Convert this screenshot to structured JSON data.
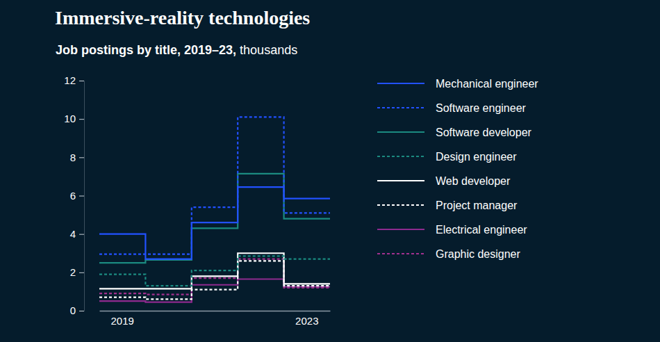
{
  "chart_data": {
    "type": "line",
    "title": "Immersive-reality technologies",
    "subtitle": "Job postings by title, 2019–23,",
    "y_label": "thousands",
    "categories": [
      "2019",
      null,
      null,
      null,
      "2023"
    ],
    "ylim": [
      0,
      12
    ],
    "yticks": [
      0,
      2,
      4,
      6,
      8,
      10,
      12
    ],
    "legend": "right",
    "series": [
      {
        "name": "Mechanical engineer",
        "color": "#2251ff",
        "line_style": "solid",
        "values": [
          4.0,
          2.7,
          4.6,
          6.45,
          5.85
        ]
      },
      {
        "name": "Software engineer",
        "color": "#2251ff",
        "line_style": "dotted",
        "values": [
          2.95,
          2.95,
          5.4,
          10.1,
          5.1
        ]
      },
      {
        "name": "Software developer",
        "color": "#1b8a80",
        "line_style": "solid",
        "values": [
          2.5,
          2.65,
          4.3,
          7.15,
          4.8
        ]
      },
      {
        "name": "Design engineer",
        "color": "#1b8a80",
        "line_style": "dotted",
        "values": [
          1.9,
          1.3,
          2.1,
          2.85,
          2.7
        ]
      },
      {
        "name": "Web developer",
        "color": "#ffffff",
        "line_style": "solid",
        "values": [
          1.15,
          1.15,
          1.8,
          3.0,
          1.4
        ]
      },
      {
        "name": "Project manager",
        "color": "#ffffff",
        "line_style": "dotted",
        "values": [
          0.7,
          0.6,
          1.1,
          2.6,
          1.3
        ]
      },
      {
        "name": "Electrical engineer",
        "color": "#8e2a8e",
        "line_style": "solid",
        "values": [
          0.5,
          0.45,
          1.35,
          1.65,
          1.25
        ]
      },
      {
        "name": "Graphic designer",
        "color": "#a2308f",
        "line_style": "dotted",
        "values": [
          0.9,
          0.85,
          1.7,
          2.7,
          1.2
        ]
      }
    ]
  }
}
